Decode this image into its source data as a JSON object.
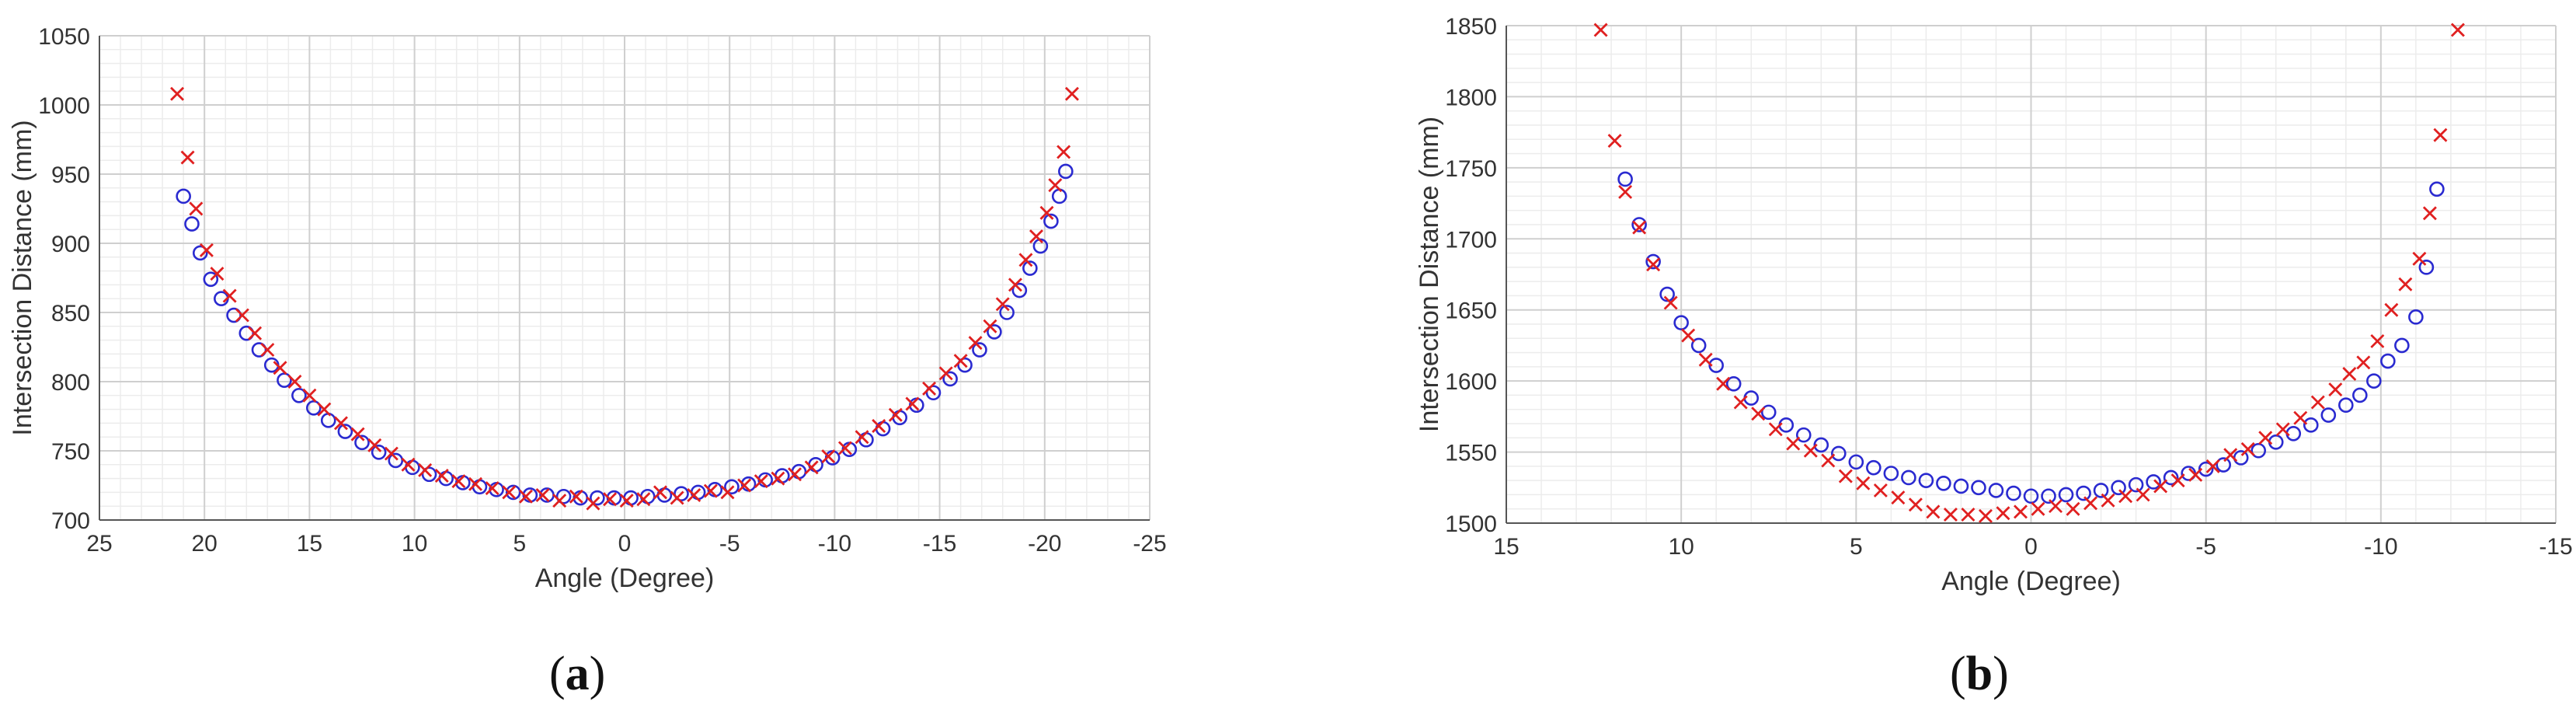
{
  "captions": {
    "a": {
      "open": "(",
      "letter": "a",
      "close": ")"
    },
    "b": {
      "open": "(",
      "letter": "b",
      "close": ")"
    }
  },
  "colors": {
    "estimated": "#e02020",
    "measured": "#2a2ad0",
    "grid_minor": "#ececec",
    "grid_major": "#cfcfcf",
    "axis": "#555555"
  },
  "chart_data": [
    {
      "id": "a",
      "type": "scatter",
      "title": "",
      "xlabel": "Angle (Degree)",
      "ylabel": "Intersection Distance (mm)",
      "xlim": [
        25,
        -25
      ],
      "ylim": [
        700,
        1050
      ],
      "xticks": [
        25,
        20,
        15,
        10,
        5,
        0,
        -5,
        -10,
        -15,
        -20,
        -25
      ],
      "yticks": [
        700,
        750,
        800,
        850,
        900,
        950,
        1000,
        1050
      ],
      "grid": true,
      "series": [
        {
          "marker": "circle",
          "color": "#2a2ad0",
          "x": [
            21,
            20.6,
            20.2,
            19.7,
            19.2,
            18.6,
            18.0,
            17.4,
            16.8,
            16.2,
            15.5,
            14.8,
            14.1,
            13.3,
            12.5,
            11.7,
            10.9,
            10.1,
            9.3,
            8.5,
            7.7,
            6.9,
            6.1,
            5.3,
            4.5,
            3.7,
            2.9,
            2.1,
            1.3,
            0.5,
            -0.3,
            -1.1,
            -1.9,
            -2.7,
            -3.5,
            -4.3,
            -5.1,
            -5.9,
            -6.7,
            -7.5,
            -8.3,
            -9.1,
            -9.9,
            -10.7,
            -11.5,
            -12.3,
            -13.1,
            -13.9,
            -14.7,
            -15.5,
            -16.2,
            -16.9,
            -17.6,
            -18.2,
            -18.8,
            -19.3,
            -19.8,
            -20.3,
            -20.7,
            -21.0
          ],
          "y": [
            934,
            914,
            893,
            874,
            860,
            848,
            835,
            823,
            812,
            801,
            790,
            781,
            772,
            764,
            756,
            749,
            743,
            738,
            733,
            730,
            727,
            724,
            722,
            720,
            718,
            718,
            717,
            716,
            716,
            716,
            716,
            717,
            718,
            719,
            720,
            722,
            724,
            726,
            729,
            732,
            735,
            740,
            745,
            751,
            758,
            766,
            774,
            783,
            792,
            802,
            812,
            823,
            836,
            850,
            866,
            882,
            898,
            916,
            934,
            952
          ]
        },
        {
          "marker": "x",
          "color": "#e02020",
          "x": [
            21.3,
            20.8,
            20.4,
            19.9,
            19.4,
            18.8,
            18.2,
            17.6,
            17.0,
            16.4,
            15.7,
            15.0,
            14.3,
            13.5,
            12.7,
            11.9,
            11.1,
            10.3,
            9.5,
            8.7,
            7.9,
            7.1,
            6.3,
            5.5,
            4.7,
            3.9,
            3.1,
            2.3,
            1.5,
            0.7,
            -0.1,
            -0.9,
            -1.7,
            -2.5,
            -3.3,
            -4.1,
            -4.9,
            -5.7,
            -6.5,
            -7.3,
            -8.1,
            -8.9,
            -9.7,
            -10.5,
            -11.3,
            -12.1,
            -12.9,
            -13.7,
            -14.5,
            -15.3,
            -16.0,
            -16.7,
            -17.4,
            -18.0,
            -18.6,
            -19.1,
            -19.6,
            -20.1,
            -20.5,
            -20.9,
            -21.3
          ],
          "y": [
            1008,
            962,
            925,
            895,
            878,
            862,
            848,
            835,
            823,
            810,
            800,
            790,
            780,
            770,
            762,
            754,
            748,
            740,
            736,
            732,
            728,
            726,
            723,
            720,
            717,
            718,
            714,
            717,
            712,
            715,
            714,
            715,
            720,
            716,
            718,
            721,
            720,
            725,
            728,
            730,
            733,
            738,
            746,
            752,
            760,
            768,
            776,
            784,
            795,
            806,
            815,
            828,
            840,
            856,
            870,
            888,
            905,
            922,
            942,
            966,
            1008
          ]
        }
      ]
    },
    {
      "id": "b",
      "type": "scatter",
      "title": "",
      "xlabel": "Angle (Degree)",
      "ylabel": "Intersection Distance (mm)",
      "xlim": [
        15,
        -15
      ],
      "ylim": [
        1500,
        1850
      ],
      "xticks": [
        15,
        10,
        5,
        0,
        -5,
        -10,
        -15
      ],
      "yticks": [
        1500,
        1550,
        1600,
        1650,
        1700,
        1750,
        1800,
        1850
      ],
      "grid": true,
      "series": [
        {
          "marker": "circle",
          "color": "#2a2ad0",
          "x": [
            11.6,
            11.2,
            10.8,
            10.4,
            10.0,
            9.5,
            9.0,
            8.5,
            8.0,
            7.5,
            7.0,
            6.5,
            6.0,
            5.5,
            5.0,
            4.5,
            4.0,
            3.5,
            3.0,
            2.5,
            2.0,
            1.5,
            1.0,
            0.5,
            0.0,
            -0.5,
            -1.0,
            -1.5,
            -2.0,
            -2.5,
            -3.0,
            -3.5,
            -4.0,
            -4.5,
            -5.0,
            -5.5,
            -6.0,
            -6.5,
            -7.0,
            -7.5,
            -8.0,
            -8.5,
            -9.0,
            -9.4,
            -9.8,
            -10.2,
            -10.6,
            -11.0,
            -11.3,
            -11.6
          ],
          "y": [
            1742,
            1710,
            1684,
            1661,
            1641,
            1625,
            1611,
            1598,
            1588,
            1578,
            1569,
            1562,
            1555,
            1549,
            1543,
            1539,
            1535,
            1532,
            1530,
            1528,
            1526,
            1525,
            1523,
            1521,
            1519,
            1519,
            1520,
            1521,
            1523,
            1525,
            1527,
            1529,
            1532,
            1535,
            1538,
            1541,
            1546,
            1551,
            1557,
            1563,
            1569,
            1576,
            1583,
            1590,
            1600,
            1614,
            1625,
            1645,
            1680,
            1735
          ]
        },
        {
          "marker": "x",
          "color": "#e02020",
          "x": [
            12.3,
            11.9,
            11.6,
            11.2,
            10.8,
            10.3,
            9.8,
            9.3,
            8.8,
            8.3,
            7.8,
            7.3,
            6.8,
            6.3,
            5.8,
            5.3,
            4.8,
            4.3,
            3.8,
            3.3,
            2.8,
            2.3,
            1.8,
            1.3,
            0.8,
            0.3,
            -0.2,
            -0.7,
            -1.2,
            -1.7,
            -2.2,
            -2.7,
            -3.2,
            -3.7,
            -4.2,
            -4.7,
            -5.2,
            -5.7,
            -6.2,
            -6.7,
            -7.2,
            -7.7,
            -8.2,
            -8.7,
            -9.1,
            -9.5,
            -9.9,
            -10.3,
            -10.7,
            -11.1,
            -11.4,
            -11.7,
            -12.2
          ],
          "y": [
            1847,
            1769,
            1733,
            1708,
            1682,
            1655,
            1632,
            1615,
            1598,
            1585,
            1577,
            1566,
            1556,
            1551,
            1544,
            1533,
            1528,
            1523,
            1518,
            1513,
            1508,
            1506,
            1506,
            1505,
            1507,
            1508,
            1510,
            1512,
            1510,
            1514,
            1516,
            1519,
            1520,
            1526,
            1530,
            1534,
            1540,
            1548,
            1552,
            1560,
            1566,
            1574,
            1585,
            1594,
            1605,
            1613,
            1628,
            1650,
            1668,
            1686,
            1718,
            1773,
            1847
          ]
        }
      ]
    }
  ]
}
